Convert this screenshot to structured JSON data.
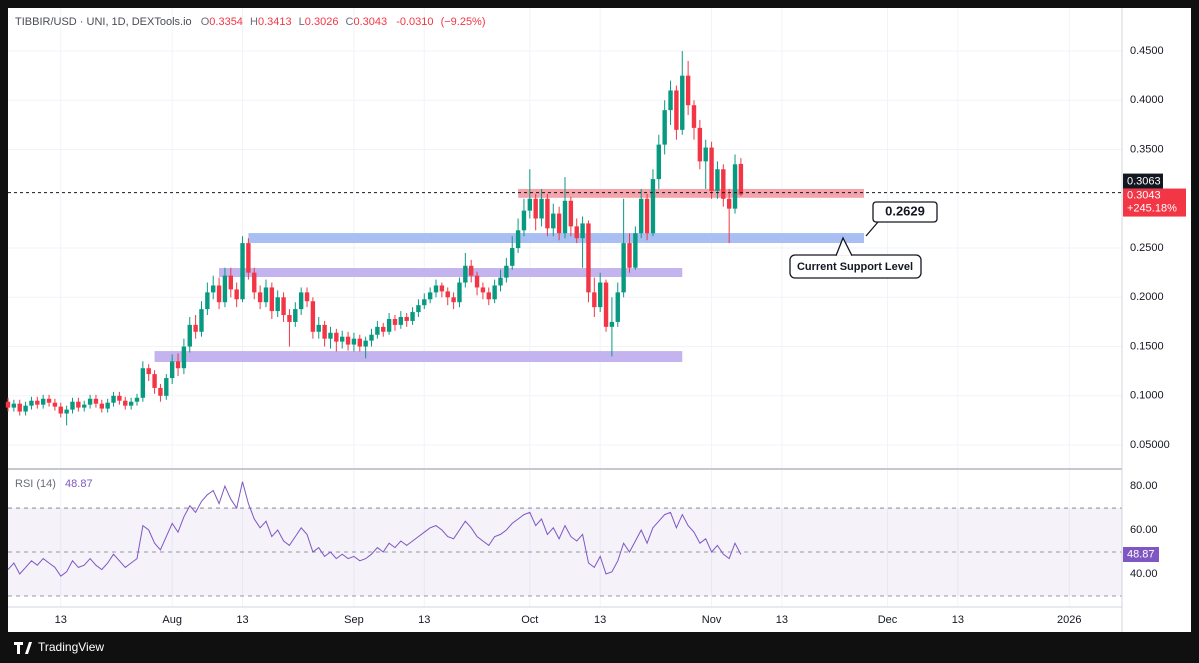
{
  "chart_data": [
    {
      "type": "candlestick",
      "title": "TIBBIR/USD · UNI, 1D, DEXTools.io",
      "ohlc_legend": [
        {
          "label": "O",
          "value": "0.3354"
        },
        {
          "label": "H",
          "value": "0.3413"
        },
        {
          "label": "L",
          "value": "0.3026"
        },
        {
          "label": "C",
          "value": "0.3043"
        }
      ],
      "change": "-0.0310",
      "change_pct": "(−9.25%)",
      "up_color": "#089981",
      "down_color": "#f23645",
      "x": [
        "2025-07-04",
        "2025-07-05",
        "2025-07-06",
        "2025-07-07",
        "2025-07-08",
        "2025-07-09",
        "2025-07-10",
        "2025-07-11",
        "2025-07-12",
        "2025-07-13",
        "2025-07-14",
        "2025-07-15",
        "2025-07-16",
        "2025-07-17",
        "2025-07-18",
        "2025-07-19",
        "2025-07-20",
        "2025-07-21",
        "2025-07-22",
        "2025-07-23",
        "2025-07-24",
        "2025-07-25",
        "2025-07-26",
        "2025-07-27",
        "2025-07-28",
        "2025-07-29",
        "2025-07-30",
        "2025-07-31",
        "2025-08-01",
        "2025-08-02",
        "2025-08-03",
        "2025-08-04",
        "2025-08-05",
        "2025-08-06",
        "2025-08-07",
        "2025-08-08",
        "2025-08-09",
        "2025-08-10",
        "2025-08-11",
        "2025-08-12",
        "2025-08-13",
        "2025-08-14",
        "2025-08-15",
        "2025-08-16",
        "2025-08-17",
        "2025-08-18",
        "2025-08-19",
        "2025-08-20",
        "2025-08-21",
        "2025-08-22",
        "2025-08-23",
        "2025-08-24",
        "2025-08-25",
        "2025-08-26",
        "2025-08-27",
        "2025-08-28",
        "2025-08-29",
        "2025-08-30",
        "2025-08-31",
        "2025-09-01",
        "2025-09-02",
        "2025-09-03",
        "2025-09-04",
        "2025-09-05",
        "2025-09-06",
        "2025-09-07",
        "2025-09-08",
        "2025-09-09",
        "2025-09-10",
        "2025-09-11",
        "2025-09-12",
        "2025-09-13",
        "2025-09-14",
        "2025-09-15",
        "2025-09-16",
        "2025-09-17",
        "2025-09-18",
        "2025-09-19",
        "2025-09-20",
        "2025-09-21",
        "2025-09-22",
        "2025-09-23",
        "2025-09-24",
        "2025-09-25",
        "2025-09-26",
        "2025-09-27",
        "2025-09-28",
        "2025-09-29",
        "2025-09-30",
        "2025-10-01",
        "2025-10-02",
        "2025-10-03",
        "2025-10-04",
        "2025-10-05",
        "2025-10-06",
        "2025-10-07",
        "2025-10-08",
        "2025-10-09",
        "2025-10-10",
        "2025-10-11",
        "2025-10-12",
        "2025-10-13",
        "2025-10-14",
        "2025-10-15",
        "2025-10-16",
        "2025-10-17",
        "2025-10-18",
        "2025-10-19",
        "2025-10-20",
        "2025-10-21",
        "2025-10-22",
        "2025-10-23",
        "2025-10-24",
        "2025-10-25",
        "2025-10-26",
        "2025-10-27",
        "2025-10-28",
        "2025-10-29",
        "2025-10-30",
        "2025-10-31",
        "2025-11-01",
        "2025-11-02",
        "2025-11-03",
        "2025-11-04",
        "2025-11-05",
        "2025-11-06"
      ],
      "open": [
        0.094,
        0.088,
        0.092,
        0.084,
        0.09,
        0.095,
        0.091,
        0.097,
        0.093,
        0.089,
        0.082,
        0.086,
        0.094,
        0.088,
        0.091,
        0.097,
        0.092,
        0.087,
        0.093,
        0.1,
        0.095,
        0.09,
        0.094,
        0.098,
        0.128,
        0.122,
        0.108,
        0.1,
        0.118,
        0.135,
        0.128,
        0.15,
        0.172,
        0.165,
        0.188,
        0.205,
        0.212,
        0.195,
        0.222,
        0.208,
        0.198,
        0.255,
        0.225,
        0.205,
        0.195,
        0.21,
        0.186,
        0.2,
        0.182,
        0.175,
        0.188,
        0.205,
        0.196,
        0.165,
        0.172,
        0.158,
        0.164,
        0.155,
        0.16,
        0.152,
        0.158,
        0.15,
        0.156,
        0.162,
        0.17,
        0.165,
        0.178,
        0.172,
        0.18,
        0.176,
        0.185,
        0.192,
        0.198,
        0.205,
        0.212,
        0.206,
        0.2,
        0.195,
        0.215,
        0.232,
        0.222,
        0.21,
        0.205,
        0.198,
        0.212,
        0.22,
        0.232,
        0.25,
        0.268,
        0.288,
        0.3,
        0.28,
        0.3,
        0.27,
        0.285,
        0.265,
        0.298,
        0.272,
        0.26,
        0.275,
        0.205,
        0.19,
        0.215,
        0.17,
        0.175,
        0.205,
        0.255,
        0.23,
        0.265,
        0.3,
        0.265,
        0.32,
        0.355,
        0.39,
        0.41,
        0.37,
        0.425,
        0.395,
        0.372,
        0.338,
        0.352,
        0.308,
        0.33,
        0.3,
        0.29,
        0.3354
      ],
      "high": [
        0.098,
        0.096,
        0.096,
        0.094,
        0.099,
        0.099,
        0.101,
        0.101,
        0.097,
        0.093,
        0.09,
        0.098,
        0.098,
        0.095,
        0.101,
        0.101,
        0.096,
        0.097,
        0.104,
        0.104,
        0.099,
        0.098,
        0.102,
        0.135,
        0.132,
        0.126,
        0.112,
        0.122,
        0.142,
        0.143,
        0.158,
        0.18,
        0.182,
        0.196,
        0.215,
        0.222,
        0.22,
        0.23,
        0.23,
        0.215,
        0.262,
        0.26,
        0.23,
        0.212,
        0.218,
        0.215,
        0.207,
        0.205,
        0.188,
        0.195,
        0.21,
        0.21,
        0.2,
        0.18,
        0.176,
        0.17,
        0.168,
        0.166,
        0.165,
        0.164,
        0.162,
        0.16,
        0.168,
        0.176,
        0.174,
        0.184,
        0.182,
        0.186,
        0.184,
        0.19,
        0.198,
        0.204,
        0.21,
        0.218,
        0.215,
        0.21,
        0.205,
        0.22,
        0.245,
        0.238,
        0.226,
        0.215,
        0.21,
        0.218,
        0.228,
        0.24,
        0.262,
        0.28,
        0.3,
        0.33,
        0.305,
        0.31,
        0.305,
        0.295,
        0.292,
        0.322,
        0.302,
        0.28,
        0.282,
        0.278,
        0.22,
        0.225,
        0.218,
        0.2,
        0.215,
        0.3,
        0.265,
        0.272,
        0.31,
        0.305,
        0.33,
        0.365,
        0.4,
        0.42,
        0.415,
        0.45,
        0.44,
        0.4,
        0.38,
        0.36,
        0.358,
        0.338,
        0.335,
        0.31,
        0.345,
        0.3413
      ],
      "low": [
        0.084,
        0.084,
        0.08,
        0.08,
        0.086,
        0.087,
        0.087,
        0.089,
        0.085,
        0.078,
        0.07,
        0.082,
        0.084,
        0.084,
        0.087,
        0.088,
        0.083,
        0.083,
        0.089,
        0.091,
        0.086,
        0.086,
        0.09,
        0.094,
        0.115,
        0.102,
        0.094,
        0.096,
        0.112,
        0.12,
        0.122,
        0.144,
        0.158,
        0.16,
        0.182,
        0.198,
        0.188,
        0.19,
        0.2,
        0.19,
        0.195,
        0.218,
        0.198,
        0.188,
        0.19,
        0.178,
        0.18,
        0.175,
        0.15,
        0.17,
        0.182,
        0.19,
        0.158,
        0.158,
        0.15,
        0.148,
        0.145,
        0.148,
        0.146,
        0.145,
        0.145,
        0.138,
        0.15,
        0.158,
        0.16,
        0.162,
        0.166,
        0.168,
        0.17,
        0.172,
        0.18,
        0.188,
        0.194,
        0.2,
        0.2,
        0.192,
        0.188,
        0.19,
        0.21,
        0.215,
        0.202,
        0.198,
        0.192,
        0.194,
        0.206,
        0.215,
        0.228,
        0.245,
        0.262,
        0.28,
        0.268,
        0.272,
        0.262,
        0.262,
        0.258,
        0.26,
        0.262,
        0.255,
        0.23,
        0.195,
        0.18,
        0.185,
        0.165,
        0.14,
        0.17,
        0.2,
        0.225,
        0.228,
        0.26,
        0.258,
        0.262,
        0.31,
        0.345,
        0.375,
        0.36,
        0.365,
        0.385,
        0.36,
        0.33,
        0.31,
        0.3,
        0.3,
        0.292,
        0.255,
        0.285,
        0.3026
      ],
      "close": [
        0.088,
        0.092,
        0.084,
        0.09,
        0.095,
        0.091,
        0.097,
        0.093,
        0.089,
        0.082,
        0.086,
        0.094,
        0.088,
        0.091,
        0.097,
        0.092,
        0.087,
        0.093,
        0.1,
        0.095,
        0.09,
        0.094,
        0.098,
        0.128,
        0.122,
        0.108,
        0.1,
        0.118,
        0.135,
        0.128,
        0.15,
        0.172,
        0.165,
        0.188,
        0.205,
        0.212,
        0.195,
        0.222,
        0.208,
        0.198,
        0.255,
        0.225,
        0.205,
        0.195,
        0.21,
        0.186,
        0.2,
        0.182,
        0.175,
        0.188,
        0.205,
        0.196,
        0.165,
        0.172,
        0.158,
        0.164,
        0.155,
        0.16,
        0.152,
        0.158,
        0.15,
        0.156,
        0.162,
        0.17,
        0.165,
        0.178,
        0.172,
        0.18,
        0.176,
        0.185,
        0.192,
        0.198,
        0.205,
        0.212,
        0.206,
        0.2,
        0.195,
        0.215,
        0.232,
        0.222,
        0.21,
        0.205,
        0.198,
        0.212,
        0.22,
        0.232,
        0.25,
        0.268,
        0.288,
        0.3,
        0.28,
        0.3,
        0.27,
        0.285,
        0.265,
        0.298,
        0.272,
        0.26,
        0.275,
        0.205,
        0.19,
        0.215,
        0.17,
        0.175,
        0.205,
        0.255,
        0.23,
        0.265,
        0.3,
        0.265,
        0.32,
        0.355,
        0.39,
        0.41,
        0.37,
        0.425,
        0.395,
        0.372,
        0.338,
        0.352,
        0.308,
        0.33,
        0.3,
        0.29,
        0.335,
        0.3043
      ],
      "xlim": [
        "2025-07-04",
        "2026-01-10"
      ],
      "xticks": [
        {
          "value": "2025-07-13",
          "label": "13"
        },
        {
          "value": "2025-08-01",
          "label": "Aug"
        },
        {
          "value": "2025-08-13",
          "label": "13"
        },
        {
          "value": "2025-09-01",
          "label": "Sep"
        },
        {
          "value": "2025-09-13",
          "label": "13"
        },
        {
          "value": "2025-10-01",
          "label": "Oct"
        },
        {
          "value": "2025-10-13",
          "label": "13"
        },
        {
          "value": "2025-11-01",
          "label": "Nov"
        },
        {
          "value": "2025-11-13",
          "label": "13"
        },
        {
          "value": "2025-12-01",
          "label": "Dec"
        },
        {
          "value": "2025-12-13",
          "label": "13"
        },
        {
          "value": "2026-01-01",
          "label": "2026"
        }
      ],
      "ylim": [
        0.0267,
        0.4937
      ],
      "yticks": [
        {
          "value": 0.45,
          "label": "0.4500"
        },
        {
          "value": 0.4,
          "label": "0.4000"
        },
        {
          "value": 0.35,
          "label": "0.3500"
        },
        {
          "value": 0.25,
          "label": "0.2500"
        },
        {
          "value": 0.2,
          "label": "0.2000"
        },
        {
          "value": 0.15,
          "label": "0.1500"
        },
        {
          "value": 0.1,
          "label": "0.1000"
        },
        {
          "value": 0.05,
          "label": "0.05000"
        }
      ],
      "grid": true,
      "price_line": {
        "value": 0.3063,
        "label": "0.3063"
      },
      "last_price": {
        "value": 0.3043,
        "label": "0.3043",
        "change": "+245.18%"
      },
      "zones": [
        {
          "color": "#f4a3ab",
          "x": [
            "2025-09-29",
            "2025-11-27"
          ],
          "range": [
            0.301,
            0.31
          ]
        },
        {
          "color": "#a9bef3",
          "x": [
            "2025-08-14",
            "2025-11-27"
          ],
          "range": [
            0.2551,
            0.2652
          ]
        },
        {
          "color": "#c3b3ee",
          "x": [
            "2025-08-09",
            "2025-10-27"
          ],
          "range": [
            0.2206,
            0.2297
          ]
        },
        {
          "color": "#c3b3ee",
          "x": [
            "2025-07-29",
            "2025-10-27"
          ],
          "range": [
            0.1343,
            0.1454
          ]
        }
      ],
      "annotations": [
        {
          "text": "0.2629"
        },
        {
          "text": "Current Support Level"
        }
      ]
    },
    {
      "type": "line",
      "series": [
        {
          "name": "RSI (14)",
          "color": "#7e57c2",
          "last_label": "48.87",
          "values": [
            42,
            45,
            40,
            43,
            46,
            44,
            47,
            45,
            43,
            39,
            41,
            46,
            43,
            44,
            47,
            44,
            42,
            45,
            49,
            46,
            43,
            45,
            47,
            62,
            60,
            54,
            51,
            57,
            63,
            59,
            66,
            71,
            68,
            73,
            76,
            78,
            72,
            80,
            74,
            70,
            82,
            72,
            65,
            61,
            64,
            57,
            60,
            55,
            53,
            57,
            61,
            58,
            50,
            52,
            48,
            50,
            47,
            49,
            47,
            48,
            46,
            47,
            49,
            52,
            50,
            54,
            52,
            55,
            53,
            55,
            57,
            59,
            61,
            62,
            60,
            57,
            56,
            60,
            64,
            61,
            57,
            55,
            53,
            57,
            58,
            60,
            63,
            65,
            67,
            68,
            62,
            65,
            58,
            61,
            56,
            62,
            57,
            55,
            58,
            45,
            43,
            48,
            40,
            41,
            46,
            54,
            50,
            55,
            60,
            54,
            61,
            64,
            67,
            68,
            61,
            67,
            62,
            59,
            54,
            56,
            50,
            53,
            49,
            47,
            54,
            48.87
          ]
        }
      ],
      "ylim": [
        25,
        87.3
      ],
      "yticks": [
        {
          "value": 80,
          "label": "80.00"
        },
        {
          "value": 60,
          "label": "60.00"
        },
        {
          "value": 40,
          "label": "40.00"
        }
      ],
      "levels": [
        70,
        50,
        30
      ]
    }
  ],
  "footer": {
    "brand": "TradingView"
  }
}
